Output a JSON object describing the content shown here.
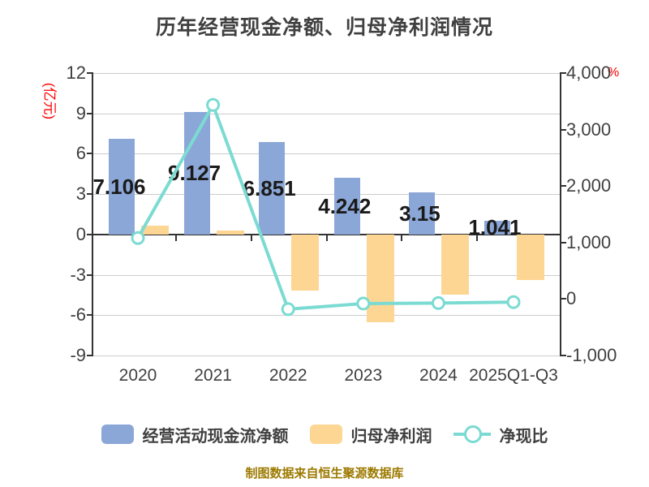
{
  "title": "历年经营现金净额、归母净利润情况",
  "footer": "制图数据来自恒生聚源数据库",
  "axes": {
    "left": {
      "name": "(亿元)",
      "name_color": "#ff0000",
      "ticks": [
        "12",
        "9",
        "6",
        "3",
        "0",
        "-3",
        "-6",
        "-9"
      ],
      "range": [
        -9,
        12
      ]
    },
    "right": {
      "name": "%",
      "name_color": "#ff0000",
      "ticks": [
        "4,000",
        "3,000",
        "2,000",
        "1,000",
        "0",
        "-1,000"
      ],
      "range": [
        -1000,
        4000
      ]
    }
  },
  "chart_data": {
    "type": "bar+line combo",
    "title": "历年经营现金净额、归母净利润情况",
    "categories": [
      "2020",
      "2021",
      "2022",
      "2023",
      "2024",
      "2025Q1-Q3"
    ],
    "left_axis_label": "(亿元)",
    "right_axis_label": "%",
    "left_axis_range": [
      -9,
      12
    ],
    "right_axis_range": [
      -1000,
      4000
    ],
    "grid": true,
    "legend_position": "bottom",
    "series": [
      {
        "name": "经营活动现金流净额",
        "type": "bar",
        "y_axis": "left",
        "color": "#8ba7d7",
        "values": [
          7.106,
          9.127,
          6.851,
          4.242,
          3.15,
          1.041
        ],
        "data_labels": [
          "7.106",
          "9.127",
          "6.851",
          "4.242",
          "3.15",
          "1.041"
        ]
      },
      {
        "name": "归母净利润",
        "type": "bar",
        "y_axis": "left",
        "color": "#fdd694",
        "estimated": true,
        "values": [
          0.66,
          0.27,
          -4.2,
          -6.5,
          -4.5,
          -3.4
        ]
      },
      {
        "name": "净现比",
        "type": "line",
        "y_axis": "right",
        "color": "#7bdbd2",
        "marker": "circle-white-fill",
        "estimated": true,
        "values": [
          1080,
          3435,
          -180,
          -80,
          -72,
          -55
        ]
      }
    ]
  },
  "colors": {
    "background": "#ffffff",
    "text": "#404040",
    "value_label": "#1a1a1a",
    "grid_line": "#cccccc",
    "axis_line": "#333333",
    "accent_red": "#ff0000",
    "footer_text": "#9c7a00"
  }
}
